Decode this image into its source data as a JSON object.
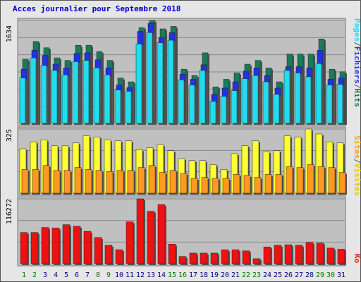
{
  "title": "Acces journalier pour Septembre 2018",
  "colors": {
    "hits": "#1a7a5a",
    "files": "#2233dd",
    "pages": "#22ddee",
    "visits": "#ffff33",
    "sites": "#ff9922",
    "kb": "#ee1111",
    "panel_bg": "#c0c0c0",
    "weekend_label": "#007700",
    "weekday_label": "#000080"
  },
  "legend": {
    "top": {
      "pages": "Pages",
      "files": "Fichiers",
      "hits": "Hits",
      "sep": "/"
    },
    "middle": {
      "sites": "Sites",
      "visits": "Visites",
      "sep": "/"
    },
    "bottom": {
      "kb": "Ko"
    }
  },
  "chart_data": [
    {
      "type": "bar",
      "title": "Acces journalier pour Septembre 2018",
      "ymax_label": "1634",
      "ylim": [
        0,
        1634
      ],
      "categories": [
        "1",
        "2",
        "3",
        "4",
        "5",
        "6",
        "7",
        "8",
        "9",
        "10",
        "11",
        "12",
        "13",
        "14",
        "15",
        "16",
        "17",
        "18",
        "19",
        "20",
        "21",
        "22",
        "23",
        "24",
        "25",
        "26",
        "27",
        "28",
        "29",
        "30",
        "31"
      ],
      "weekend_days": [
        1,
        2,
        8,
        9,
        15,
        16,
        22,
        23,
        29,
        30
      ],
      "series": [
        {
          "name": "Hits",
          "values": [
            1020,
            1300,
            1200,
            1040,
            1000,
            1240,
            1240,
            1140,
            1000,
            720,
            660,
            1520,
            1634,
            1500,
            1540,
            860,
            760,
            1120,
            580,
            700,
            800,
            940,
            1000,
            880,
            660,
            1100,
            1100,
            1100,
            1340,
            860,
            820
          ]
        },
        {
          "name": "Fichiers",
          "values": [
            860,
            1160,
            1080,
            940,
            880,
            1110,
            1120,
            1010,
            880,
            610,
            570,
            1460,
            1590,
            1360,
            1440,
            780,
            700,
            930,
            460,
            560,
            660,
            830,
            880,
            760,
            560,
            900,
            900,
            880,
            1160,
            700,
            720
          ]
        },
        {
          "name": "Pages",
          "values": [
            720,
            1040,
            920,
            840,
            770,
            980,
            1000,
            880,
            770,
            530,
            510,
            1260,
            1440,
            1280,
            1320,
            690,
            610,
            840,
            350,
            430,
            520,
            710,
            760,
            660,
            460,
            840,
            800,
            740,
            950,
            610,
            620
          ]
        }
      ]
    },
    {
      "type": "bar",
      "ymax_label": "325",
      "ylim": [
        0,
        325
      ],
      "categories": [
        "1",
        "2",
        "3",
        "4",
        "5",
        "6",
        "7",
        "8",
        "9",
        "10",
        "11",
        "12",
        "13",
        "14",
        "15",
        "16",
        "17",
        "18",
        "19",
        "20",
        "21",
        "22",
        "23",
        "24",
        "25",
        "26",
        "27",
        "28",
        "29",
        "30",
        "31"
      ],
      "series": [
        {
          "name": "Visites",
          "values": [
            225,
            260,
            270,
            240,
            240,
            255,
            290,
            285,
            270,
            265,
            265,
            220,
            230,
            245,
            215,
            175,
            165,
            165,
            145,
            120,
            200,
            240,
            265,
            210,
            215,
            290,
            285,
            325,
            300,
            260,
            255
          ]
        },
        {
          "name": "Sites",
          "values": [
            120,
            120,
            140,
            115,
            115,
            130,
            120,
            115,
            110,
            115,
            115,
            130,
            140,
            105,
            115,
            100,
            75,
            80,
            75,
            75,
            95,
            90,
            80,
            95,
            95,
            135,
            130,
            145,
            135,
            130,
            105
          ]
        }
      ]
    },
    {
      "type": "bar",
      "ymax_label": "116272",
      "ylim": [
        0,
        116272
      ],
      "categories": [
        "1",
        "2",
        "3",
        "4",
        "5",
        "6",
        "7",
        "8",
        "9",
        "10",
        "11",
        "12",
        "13",
        "14",
        "15",
        "16",
        "17",
        "18",
        "19",
        "20",
        "21",
        "22",
        "23",
        "24",
        "25",
        "26",
        "27",
        "28",
        "29",
        "30",
        "31"
      ],
      "series": [
        {
          "name": "Ko",
          "values": [
            56000,
            56000,
            65000,
            64000,
            70000,
            67000,
            58000,
            47000,
            33000,
            25000,
            75000,
            116272,
            94000,
            106000,
            35000,
            13000,
            19000,
            19000,
            19000,
            25000,
            25000,
            23000,
            9000,
            30000,
            33000,
            34000,
            33000,
            38000,
            37000,
            28000,
            26000
          ]
        }
      ]
    }
  ]
}
